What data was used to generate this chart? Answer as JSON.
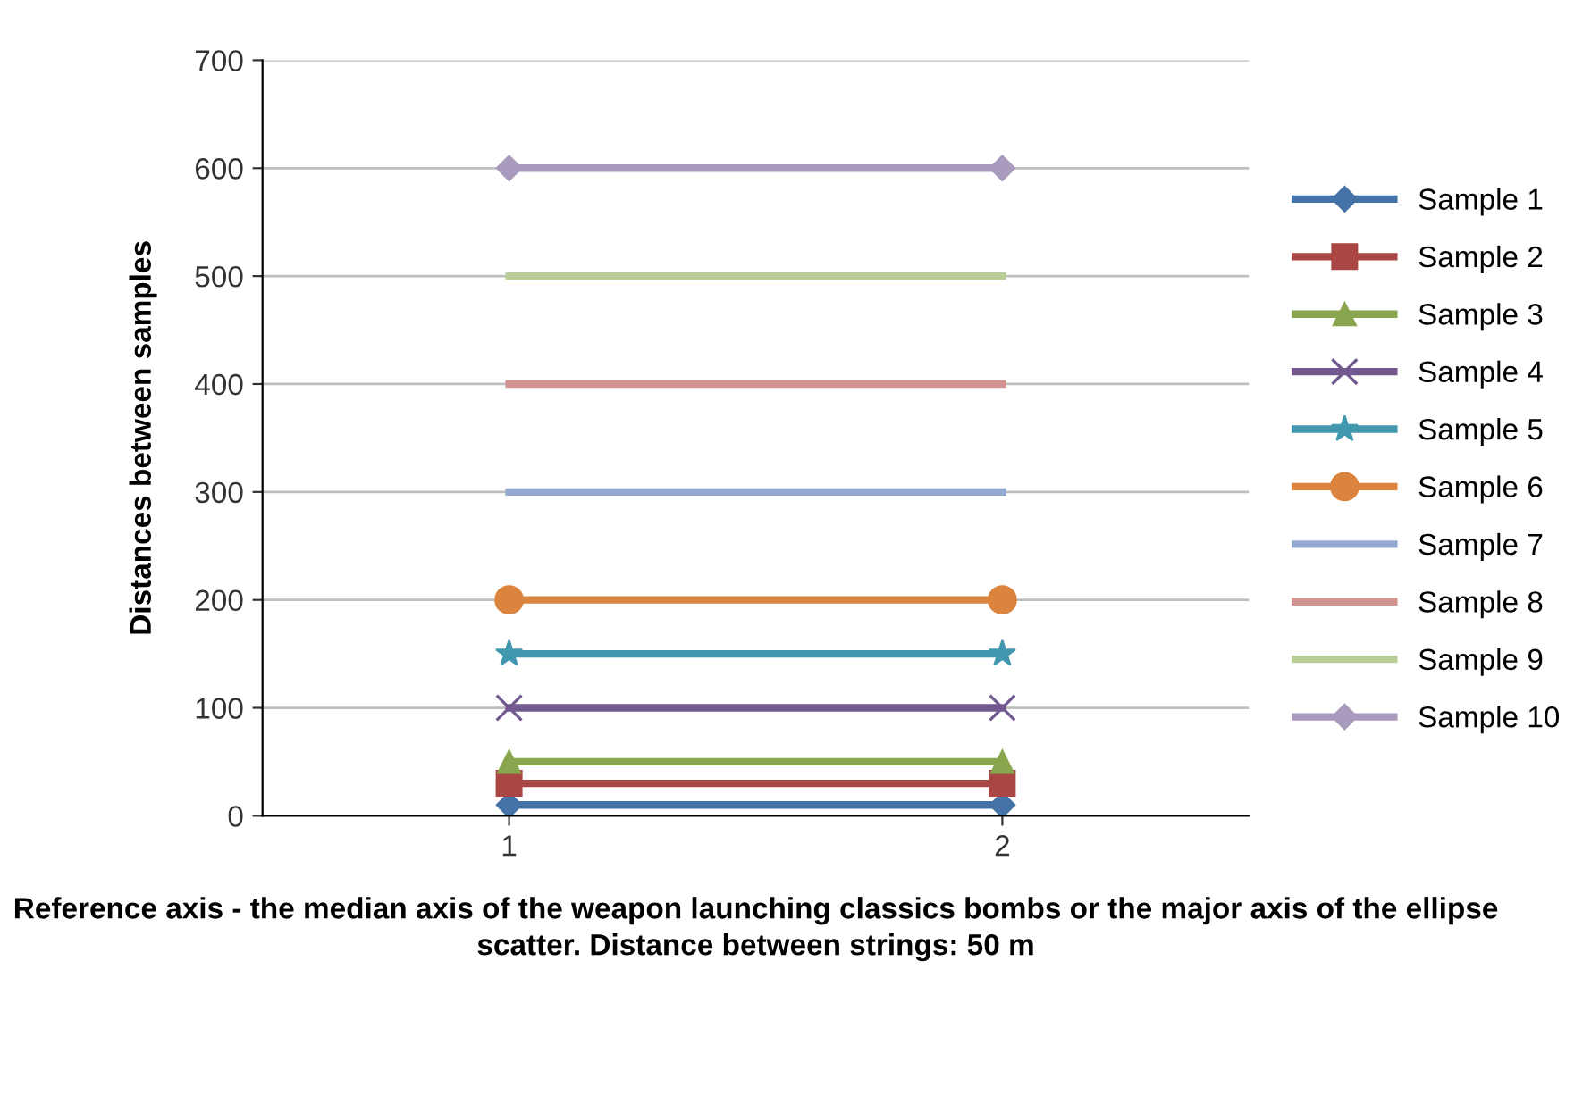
{
  "chart_data": {
    "type": "line",
    "xlabel": "Reference axis - the median axis of the weapon launching classics bombs or the major axis of the ellipse scatter. Distance between strings: 50 m",
    "ylabel": "Distances between samples",
    "categories": [
      "1",
      "2"
    ],
    "series": [
      {
        "name": "Sample 1",
        "color": "#4572a7",
        "marker": "diamond",
        "values": [
          10,
          10
        ]
      },
      {
        "name": "Sample 2",
        "color": "#aa4643",
        "marker": "square",
        "values": [
          30,
          30
        ]
      },
      {
        "name": "Sample 3",
        "color": "#89a54e",
        "marker": "triangle",
        "values": [
          50,
          50
        ]
      },
      {
        "name": "Sample 4",
        "color": "#71588f",
        "marker": "cross",
        "values": [
          100,
          100
        ]
      },
      {
        "name": "Sample 5",
        "color": "#4198af",
        "marker": "star",
        "values": [
          150,
          150
        ]
      },
      {
        "name": "Sample 6",
        "color": "#db843d",
        "marker": "circle",
        "values": [
          200,
          200
        ]
      },
      {
        "name": "Sample 7",
        "color": "#93a9cf",
        "marker": "none",
        "values": [
          300,
          300
        ]
      },
      {
        "name": "Sample 8",
        "color": "#d19392",
        "marker": "none",
        "values": [
          400,
          400
        ]
      },
      {
        "name": "Sample 9",
        "color": "#b9cd96",
        "marker": "none",
        "values": [
          500,
          500
        ]
      },
      {
        "name": "Sample 10",
        "color": "#a99bbd",
        "marker": "diamond",
        "values": [
          600,
          600
        ]
      }
    ],
    "ylim": [
      0,
      700
    ],
    "yticks": [
      0,
      100,
      200,
      300,
      400,
      500,
      600,
      700
    ],
    "grid": "y",
    "legend": "right"
  }
}
